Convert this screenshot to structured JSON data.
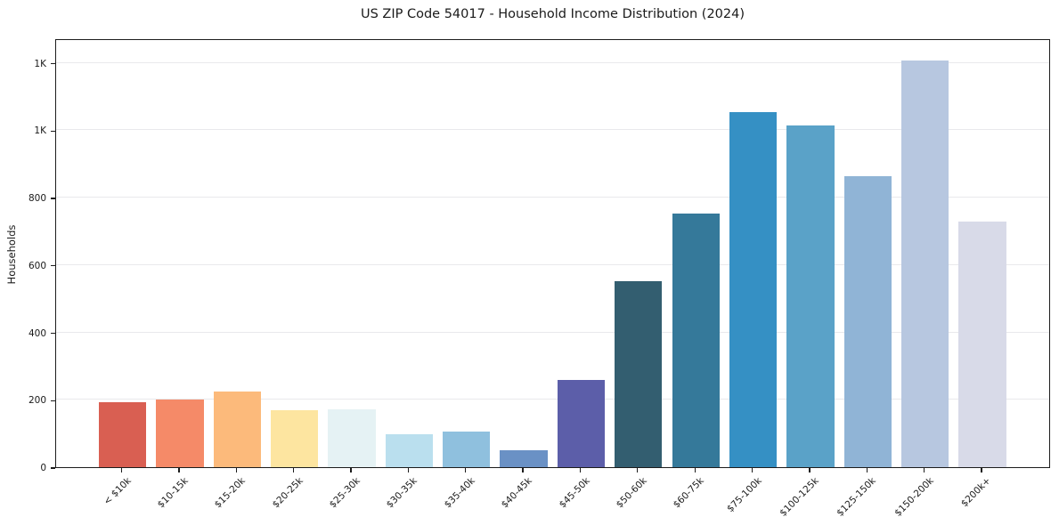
{
  "title": "US ZIP Code 54017 - Household Income Distribution (2024)",
  "chart_data": {
    "type": "bar",
    "title": "US ZIP Code 54017 - Household Income Distribution (2024)",
    "xlabel": "",
    "ylabel": "Households",
    "categories": [
      "< $10k",
      "$10-15k",
      "$15-20k",
      "$20-25k",
      "$25-30k",
      "$30-35k",
      "$35-40k",
      "$40-45k",
      "$45-50k",
      "$50-60k",
      "$60-75k",
      "$75-100k",
      "$100-125k",
      "$125-150k",
      "$150-200k",
      "$200k+"
    ],
    "values": [
      192,
      202,
      224,
      168,
      172,
      98,
      107,
      49,
      259,
      552,
      752,
      1053,
      1015,
      863,
      1206,
      729
    ],
    "bar_colors": [
      "#d95f52",
      "#f58a68",
      "#fcba7b",
      "#fde5a0",
      "#e5f2f4",
      "#badfee",
      "#8fc0de",
      "#6a91c5",
      "#5c5ea9",
      "#335e70",
      "#35799a",
      "#3590c4",
      "#5aa2c8",
      "#90b4d6",
      "#b7c7e0",
      "#d8dae8"
    ],
    "ylim": [
      0,
      1273
    ],
    "yticks": [
      {
        "value": 0,
        "label": "0"
      },
      {
        "value": 200,
        "label": "200"
      },
      {
        "value": 400,
        "label": "400"
      },
      {
        "value": 600,
        "label": "600"
      },
      {
        "value": 800,
        "label": "800"
      },
      {
        "value": 1000,
        "label": "1K"
      },
      {
        "value": 1200,
        "label": "1K"
      }
    ],
    "grid": "horizontal",
    "legend": "none",
    "x_tick_rotation_deg": 45,
    "background_color": "#ffffff",
    "spine_color": "#1c1c1c",
    "gridline_color": "#e9e9ec",
    "text_color": "#1a1a1a"
  }
}
